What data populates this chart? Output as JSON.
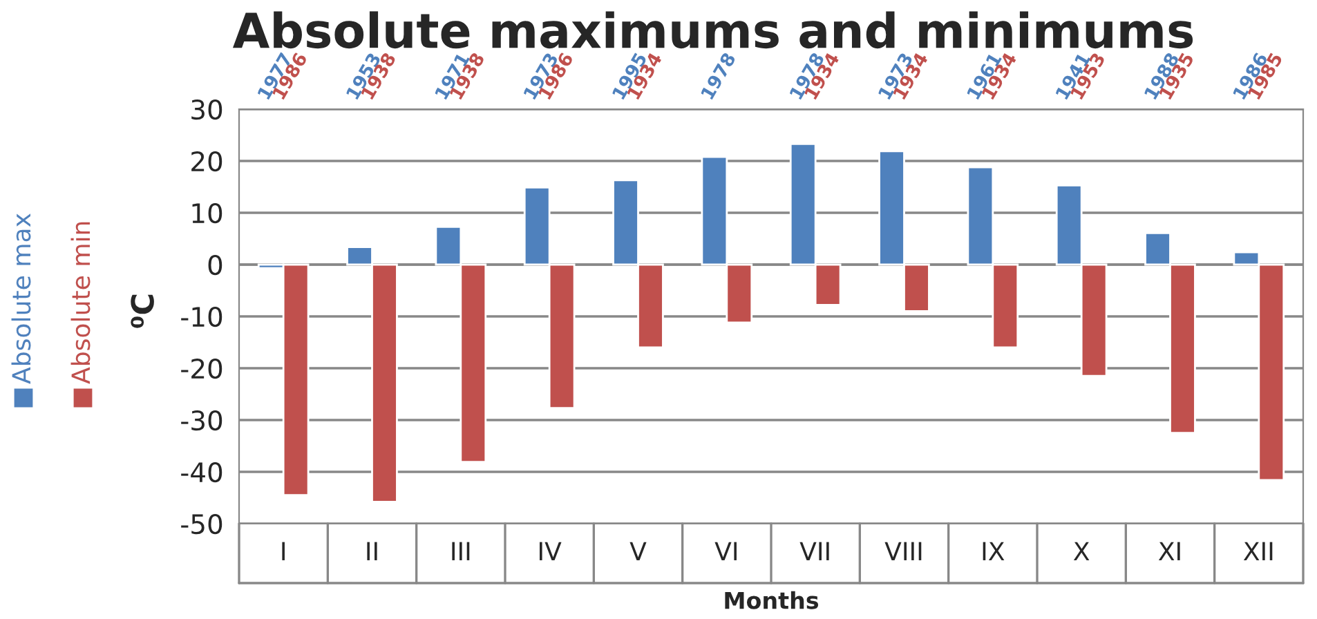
{
  "chart_data": {
    "type": "bar",
    "title": "Absolute maximums and minimums",
    "xlabel": "Months",
    "ylabel": "⁰C",
    "categories": [
      "I",
      "II",
      "III",
      "IV",
      "V",
      "VI",
      "VII",
      "VIII",
      "IX",
      "X",
      "XI",
      "XII"
    ],
    "series": [
      {
        "name": "Absolute max",
        "color": "#4f81bd",
        "values": [
          -0.7,
          3.4,
          7.3,
          14.9,
          16.3,
          20.8,
          23.3,
          21.9,
          18.8,
          15.3,
          6.1,
          2.4
        ]
      },
      {
        "name": "Absolute min",
        "color": "#c0504d",
        "values": [
          -44.5,
          -45.8,
          -38.1,
          -27.7,
          -16.0,
          -11.2,
          -7.8,
          -9.0,
          -16.0,
          -21.5,
          -32.5,
          -41.6
        ]
      }
    ],
    "annotations": [
      "1977",
      "1986",
      "1953",
      "1938",
      "1971",
      "1938",
      "1973",
      "1986",
      "1995",
      "1934",
      "1978",
      null,
      "1978",
      "1934",
      "1973",
      "1934",
      "1961",
      "1934",
      "1941",
      "1953",
      "1988",
      "1935",
      "1986",
      "1985"
    ],
    "ylim": [
      -50,
      30
    ],
    "yticks": [
      -50,
      -40,
      -30,
      -20,
      -10,
      0,
      10,
      20,
      30
    ],
    "grid": "y",
    "legend": "left"
  }
}
